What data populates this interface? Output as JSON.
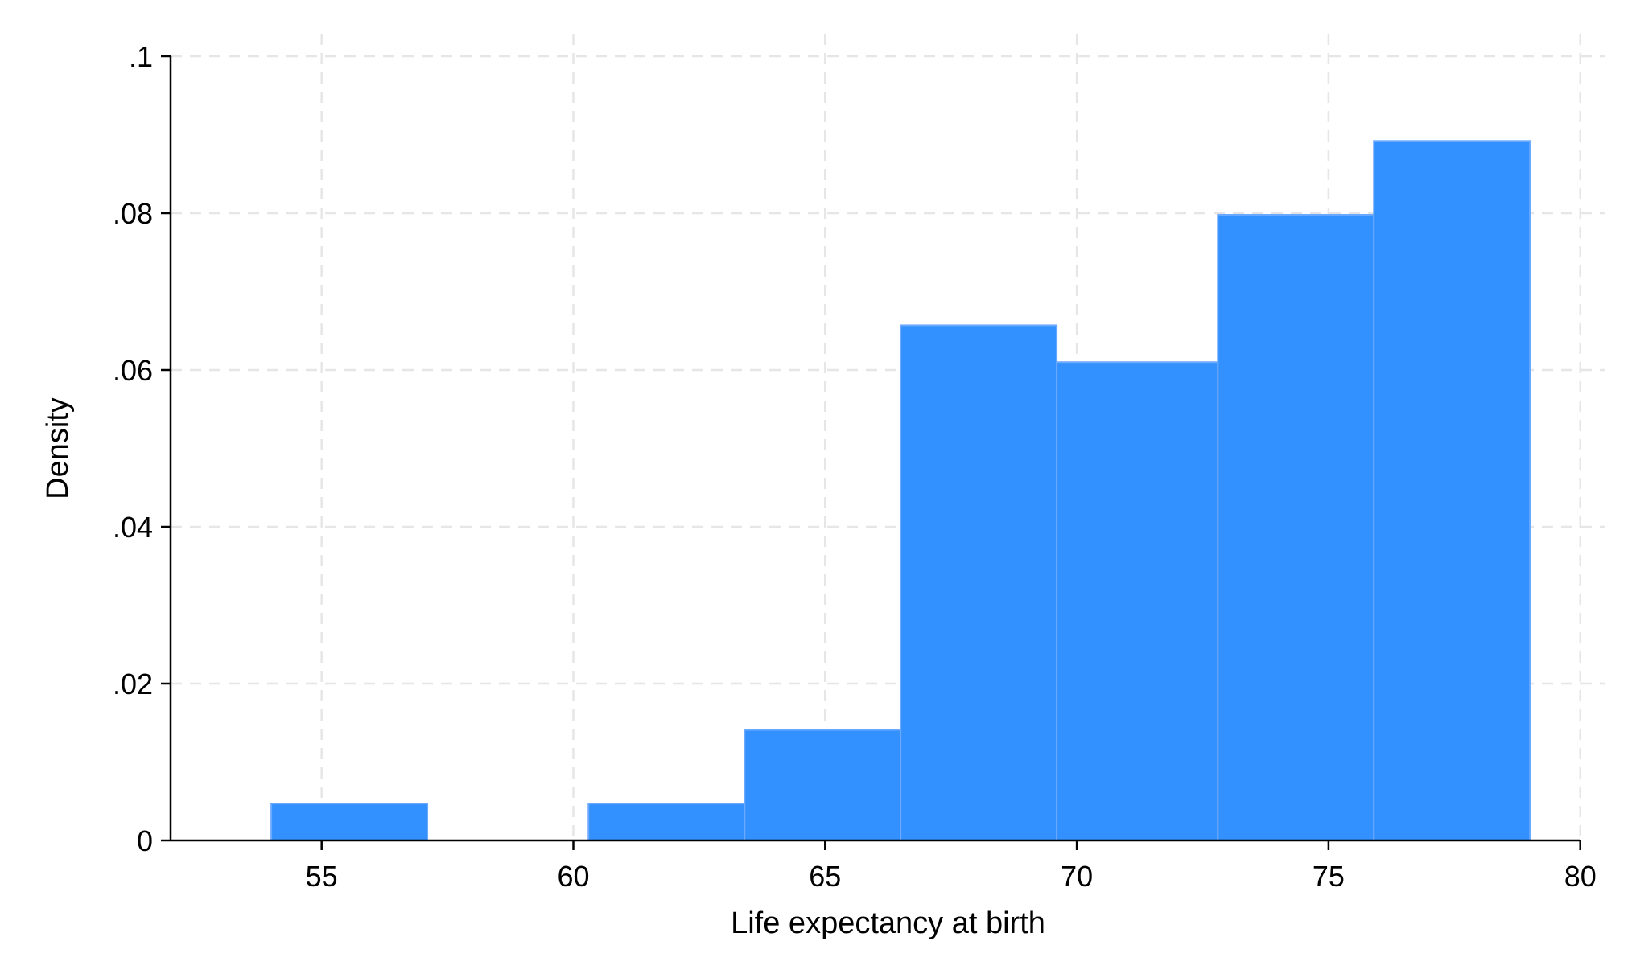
{
  "chart_data": {
    "type": "bar",
    "subtype": "histogram",
    "xlabel": "Life expectancy at birth",
    "ylabel": "Density",
    "xlim": [
      52,
      80.5
    ],
    "ylim": [
      0,
      0.1
    ],
    "x_ticks": [
      55,
      60,
      65,
      70,
      75,
      80
    ],
    "y_ticks": [
      0,
      0.02,
      0.04,
      0.06,
      0.08,
      0.1
    ],
    "x_tick_labels": [
      "55",
      "60",
      "65",
      "70",
      "75",
      "80"
    ],
    "y_tick_labels": [
      "0",
      ".02",
      ".04",
      ".06",
      ".08",
      ".1"
    ],
    "grid": true,
    "bar_color": "#3391ff",
    "bins": [
      {
        "start": 54.0,
        "end": 57.1,
        "density": 0.0047
      },
      {
        "start": 57.1,
        "end": 60.3,
        "density": 0.0
      },
      {
        "start": 60.3,
        "end": 63.4,
        "density": 0.0047
      },
      {
        "start": 63.4,
        "end": 66.5,
        "density": 0.0141
      },
      {
        "start": 66.5,
        "end": 69.6,
        "density": 0.0657
      },
      {
        "start": 69.6,
        "end": 72.8,
        "density": 0.061
      },
      {
        "start": 72.8,
        "end": 75.9,
        "density": 0.0798
      },
      {
        "start": 75.9,
        "end": 79.0,
        "density": 0.0892
      }
    ]
  }
}
